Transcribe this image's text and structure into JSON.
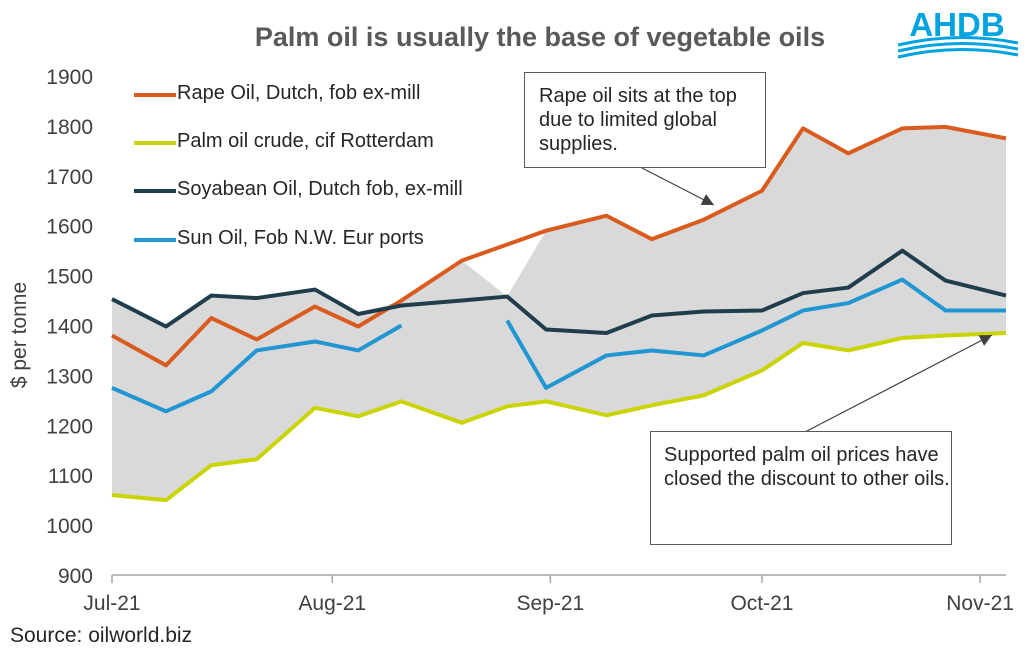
{
  "header": {
    "title": "Palm oil is usually the base of vegetable oils",
    "logo_text": "AHDB"
  },
  "footer": {
    "source": "Source: oilworld.biz"
  },
  "annotations": {
    "rape": "Rape oil sits at the top due to limited global supplies.",
    "palm": "Supported palm oil prices have closed the discount to other oils."
  },
  "colors": {
    "rape": "#D95B1E",
    "palm": "#C9D400",
    "soy": "#1F3D4A",
    "sun": "#2196D3",
    "band": "#D9D9D9",
    "logo": "#00A3E0"
  },
  "chart_data": {
    "type": "line",
    "title": "Palm oil is usually the base of vegetable oils",
    "xlabel": "",
    "ylabel": "$ per tonne",
    "ylim": [
      900,
      1900
    ],
    "yticks": [
      900,
      1000,
      1100,
      1200,
      1300,
      1400,
      1500,
      1600,
      1700,
      1800,
      1900
    ],
    "xlim": [
      0,
      20.7
    ],
    "xticks": [
      {
        "label": "Jul-21",
        "x": 0
      },
      {
        "label": "Aug-21",
        "x": 5.1
      },
      {
        "label": "Sep-21",
        "x": 10.15
      },
      {
        "label": "Oct-21",
        "x": 15.05
      },
      {
        "label": "Nov-21",
        "x": 20.1
      }
    ],
    "grid": false,
    "shaded_band": "range between the highest and lowest series",
    "legend_position": "top-left",
    "x": [
      0,
      1.25,
      2.3,
      3.35,
      4.7,
      5.7,
      6.7,
      8.1,
      9.15,
      10.05,
      11.45,
      12.5,
      13.7,
      14.5,
      15.6,
      16.7,
      18.3,
      19.3,
      20.7
    ],
    "series": [
      {
        "name": "Rape Oil, Dutch, fob ex-mill",
        "color": "#D95B1E",
        "x": [
          0,
          1.25,
          2.3,
          3.35,
          4.7,
          5.7,
          6.7,
          8.1,
          10.05,
          11.45,
          12.5,
          13.7,
          15.05,
          16.0,
          17.05,
          18.3,
          19.3,
          20.7
        ],
        "values": [
          1380,
          1320,
          1415,
          1372,
          1438,
          1398,
          1450,
          1530,
          1590,
          1620,
          1573,
          1612,
          1670,
          1795,
          1745,
          1795,
          1798,
          1775
        ]
      },
      {
        "name": "Palm oil crude, cif Rotterdam",
        "color": "#C9D400",
        "x": [
          0,
          1.25,
          2.3,
          3.35,
          4.7,
          5.7,
          6.7,
          8.1,
          9.15,
          10.05,
          11.45,
          12.5,
          13.7,
          15.05,
          16.0,
          17.05,
          18.3,
          19.3,
          20.7
        ],
        "values": [
          1060,
          1050,
          1120,
          1132,
          1235,
          1218,
          1248,
          1205,
          1238,
          1248,
          1220,
          1240,
          1260,
          1310,
          1365,
          1350,
          1375,
          1380,
          1385
        ]
      },
      {
        "name": "Soyabean Oil, Dutch fob, ex-mill",
        "color": "#1F3D4A",
        "x": [
          0,
          1.25,
          2.3,
          3.35,
          4.7,
          5.7,
          6.7,
          8.1,
          9.15,
          10.05,
          11.45,
          12.5,
          13.7,
          15.05,
          16.0,
          17.05,
          18.3,
          19.3,
          20.7
        ],
        "values": [
          1453,
          1398,
          1460,
          1455,
          1472,
          1423,
          1440,
          1450,
          1458,
          1392,
          1385,
          1420,
          1428,
          1430,
          1465,
          1476,
          1550,
          1490,
          1460
        ]
      },
      {
        "name": "Sun Oil, Fob N.W. Eur ports",
        "color": "#2196D3",
        "segments": [
          {
            "x": [
              0,
              1.25,
              2.3,
              3.35,
              4.7,
              5.7,
              6.7
            ],
            "values": [
              1275,
              1228,
              1268,
              1350,
              1368,
              1350,
              1400
            ]
          },
          {
            "x": [
              9.15,
              10.05,
              11.45,
              12.5,
              13.7,
              15.05,
              16.0,
              17.05,
              18.3,
              19.3,
              20.7
            ],
            "values": [
              1410,
              1275,
              1340,
              1350,
              1340,
              1390,
              1430,
              1445,
              1492,
              1430,
              1430
            ]
          }
        ]
      }
    ]
  }
}
